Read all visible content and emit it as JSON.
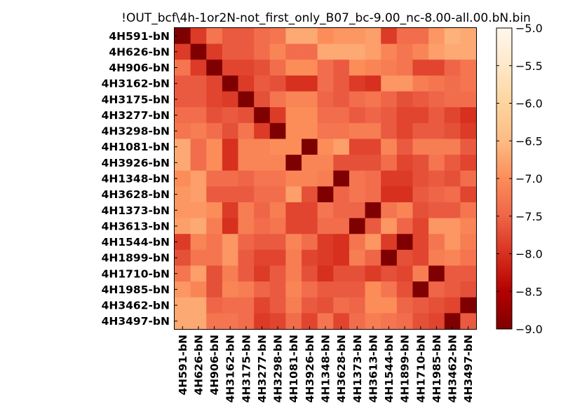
{
  "chart_data": {
    "type": "heatmap",
    "title": "!OUT_bcf\\4h-1or2N-not_first_only_B07_bc-9.00_nc-8.00-all.00.bN.bin",
    "labels": [
      "4H591-bN",
      "4H626-bN",
      "4H906-bN",
      "4H3162-bN",
      "4H3175-bN",
      "4H3277-bN",
      "4H3298-bN",
      "4H1081-bN",
      "4H3926-bN",
      "4H1348-bN",
      "4H3628-bN",
      "4H1373-bN",
      "4H3613-bN",
      "4H1544-bN",
      "4H1899-bN",
      "4H1710-bN",
      "4H1985-bN",
      "4H3462-bN",
      "4H3497-bN"
    ],
    "colorbar": {
      "min": -9.0,
      "max": -5.0,
      "ticks": [
        -5.0,
        -5.5,
        -6.0,
        -6.5,
        -7.0,
        -7.5,
        -8.0,
        -8.5,
        -9.0
      ],
      "tick_labels": [
        "−5.0",
        "−5.5",
        "−6.0",
        "−6.5",
        "−7.0",
        "−7.5",
        "−8.0",
        "−8.5",
        "−9.0"
      ],
      "colormap": "OrRd",
      "color_low": "#7f0000",
      "color_high": "#fff7ec"
    },
    "values": [
      [
        -9.0,
        -7.9,
        -7.3,
        -7.6,
        -7.6,
        -7.4,
        -7.3,
        -6.7,
        -6.7,
        -7.0,
        -6.9,
        -6.9,
        -6.8,
        -7.9,
        -7.4,
        -7.4,
        -6.9,
        -6.6,
        -6.7
      ],
      [
        -7.9,
        -9.0,
        -7.9,
        -7.6,
        -7.6,
        -7.4,
        -7.1,
        -7.4,
        -7.4,
        -6.7,
        -6.7,
        -6.7,
        -6.8,
        -7.1,
        -7.3,
        -7.1,
        -6.8,
        -6.7,
        -6.7
      ],
      [
        -7.3,
        -7.9,
        -9.0,
        -7.8,
        -7.8,
        -7.7,
        -7.4,
        -7.0,
        -7.0,
        -7.4,
        -7.6,
        -7.0,
        -7.1,
        -7.2,
        -7.3,
        -7.8,
        -7.8,
        -7.5,
        -7.3
      ],
      [
        -7.6,
        -7.6,
        -7.8,
        -9.0,
        -7.9,
        -7.6,
        -7.7,
        -8.0,
        -8.0,
        -7.4,
        -7.6,
        -7.9,
        -8.0,
        -6.9,
        -6.9,
        -7.2,
        -7.3,
        -7.4,
        -7.3
      ],
      [
        -7.6,
        -7.6,
        -7.8,
        -7.9,
        -9.0,
        -7.7,
        -7.3,
        -7.1,
        -7.1,
        -7.5,
        -7.6,
        -7.4,
        -7.3,
        -7.5,
        -7.7,
        -7.6,
        -7.5,
        -7.4,
        -7.4
      ],
      [
        -7.4,
        -7.4,
        -7.7,
        -7.6,
        -7.7,
        -9.0,
        -7.9,
        -7.0,
        -7.0,
        -7.4,
        -7.4,
        -7.6,
        -7.5,
        -7.6,
        -7.8,
        -7.8,
        -7.6,
        -7.8,
        -8.0
      ],
      [
        -7.3,
        -7.2,
        -7.4,
        -7.7,
        -7.3,
        -7.9,
        -9.0,
        -7.0,
        -7.0,
        -7.3,
        -7.3,
        -7.2,
        -7.2,
        -7.6,
        -7.8,
        -7.6,
        -7.6,
        -7.7,
        -7.9
      ],
      [
        -6.7,
        -7.4,
        -7.0,
        -8.0,
        -7.1,
        -7.1,
        -7.0,
        -7.0,
        -9.0,
        -7.0,
        -6.8,
        -7.8,
        -7.8,
        -7.1,
        -7.6,
        -7.2,
        -7.2,
        -7.2,
        -7.6
      ],
      [
        -6.7,
        -7.4,
        -7.0,
        -8.0,
        -7.1,
        -7.1,
        -7.1,
        -9.0,
        -7.1,
        -7.1,
        -7.7,
        -7.7,
        -7.7,
        -7.4,
        -7.8,
        -7.7,
        -7.3,
        -7.6,
        -7.8
      ],
      [
        -7.0,
        -6.8,
        -7.4,
        -7.4,
        -7.5,
        -7.3,
        -7.3,
        -7.1,
        -7.1,
        -7.2,
        -9.0,
        -7.3,
        -7.4,
        -7.9,
        -7.9,
        -7.7,
        -7.6,
        -7.7,
        -7.4
      ],
      [
        -6.9,
        -6.8,
        -7.6,
        -7.6,
        -7.6,
        -7.4,
        -7.4,
        -6.8,
        -7.7,
        -9.0,
        -7.5,
        -7.3,
        -7.4,
        -8.0,
        -8.0,
        -7.6,
        -7.5,
        -7.4,
        -7.8
      ],
      [
        -6.9,
        -6.9,
        -7.0,
        -7.9,
        -7.2,
        -7.5,
        -7.2,
        -7.8,
        -7.8,
        -7.3,
        -7.5,
        -7.5,
        -9.0,
        -7.3,
        -7.1,
        -7.7,
        -7.6,
        -7.6,
        -7.3
      ],
      [
        -6.8,
        -6.7,
        -7.2,
        -8.0,
        -7.2,
        -7.4,
        -7.3,
        -7.8,
        -7.8,
        -7.4,
        -7.4,
        -9.0,
        -7.6,
        -6.9,
        -7.5,
        -7.8,
        -6.9,
        -6.9,
        -7.1
      ],
      [
        -7.9,
        -7.1,
        -7.3,
        -6.9,
        -7.5,
        -7.6,
        -7.6,
        -7.1,
        -7.4,
        -7.9,
        -8.0,
        -7.3,
        -6.9,
        -7.9,
        -9.0,
        -7.8,
        -7.3,
        -6.9,
        -7.2
      ],
      [
        -7.7,
        -7.3,
        -7.3,
        -6.9,
        -7.6,
        -7.8,
        -7.8,
        -7.2,
        -7.8,
        -7.9,
        -8.0,
        -7.2,
        -7.5,
        -9.0,
        -7.7,
        -7.8,
        -7.2,
        -7.1,
        -7.3
      ],
      [
        -7.3,
        -6.8,
        -7.7,
        -7.2,
        -7.6,
        -7.9,
        -7.6,
        -7.2,
        -7.7,
        -8.0,
        -7.7,
        -7.7,
        -7.9,
        -7.7,
        -7.8,
        -7.2,
        -9.0,
        -7.6,
        -7.6
      ],
      [
        -6.9,
        -7.1,
        -7.7,
        -7.1,
        -7.2,
        -7.5,
        -7.6,
        -7.1,
        -7.4,
        -7.6,
        -7.6,
        -7.6,
        -7.0,
        -7.3,
        -7.7,
        -9.0,
        -7.5,
        -7.6,
        -7.7
      ],
      [
        -6.7,
        -6.7,
        -7.5,
        -7.4,
        -7.4,
        -7.8,
        -7.6,
        -7.2,
        -7.6,
        -7.7,
        -7.4,
        -7.5,
        -7.0,
        -7.0,
        -7.5,
        -7.6,
        -7.7,
        -7.8,
        -9.0
      ],
      [
        -6.7,
        -6.7,
        -7.3,
        -7.3,
        -7.4,
        -7.9,
        -7.8,
        -7.4,
        -7.8,
        -7.3,
        -7.8,
        -7.4,
        -7.2,
        -7.3,
        -7.4,
        -7.7,
        -7.8,
        -9.0,
        -7.6
      ]
    ]
  }
}
